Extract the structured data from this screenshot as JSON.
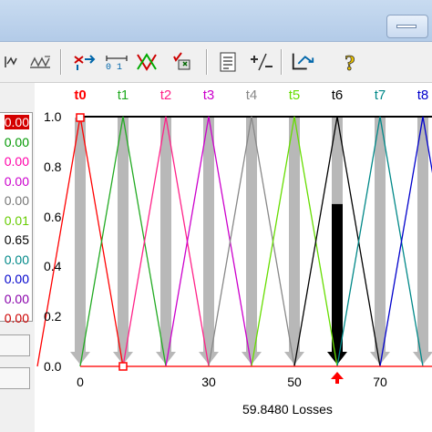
{
  "window": {
    "close_icon": "close-button-icon"
  },
  "toolbar": {
    "icons": [
      "trend-wave-icon",
      "trend-stack-icon",
      "arrows-move-icon",
      "scale-01-icon",
      "crossover-icon",
      "hand-checklist-icon",
      "document-list-icon",
      "plus-minus-icon",
      "route-arrow-icon",
      "help-question-icon"
    ]
  },
  "left_panel": {
    "values": [
      {
        "text": "0.00",
        "color": "#ffffff",
        "bg": "#d40000"
      },
      {
        "text": "0.00",
        "color": "#009900"
      },
      {
        "text": "0.00",
        "color": "#ff00aa"
      },
      {
        "text": "0.00",
        "color": "#cc00cc"
      },
      {
        "text": "0.00",
        "color": "#777777"
      },
      {
        "text": "0.01",
        "color": "#66cc00"
      },
      {
        "text": "0.65",
        "color": "#000000"
      },
      {
        "text": "0.00",
        "color": "#008888"
      },
      {
        "text": "0.00",
        "color": "#0000cc"
      },
      {
        "text": "0.00",
        "color": "#8800aa"
      },
      {
        "text": "0.00",
        "color": "#cc0000"
      }
    ]
  },
  "chart_data": {
    "type": "line",
    "series_labels": [
      {
        "name": "t0",
        "color": "#ff0000",
        "bold": true
      },
      {
        "name": "t1",
        "color": "#22aa22"
      },
      {
        "name": "t2",
        "color": "#ff2288"
      },
      {
        "name": "t3",
        "color": "#cc00cc"
      },
      {
        "name": "t4",
        "color": "#888888"
      },
      {
        "name": "t5",
        "color": "#66dd00"
      },
      {
        "name": "t6",
        "color": "#000000"
      },
      {
        "name": "t7",
        "color": "#008888"
      },
      {
        "name": "t8",
        "color": "#0000cc"
      }
    ],
    "triangle_peaks": [
      0,
      10,
      20,
      30,
      40,
      50,
      60,
      70,
      80
    ],
    "triangle_halfwidth": 10,
    "gray_bars_at": [
      0,
      10,
      20,
      30,
      40,
      50,
      70,
      80
    ],
    "highlight_bar": {
      "x": 60,
      "value": 0.65
    },
    "red_markers_at": [
      0,
      10
    ],
    "current_x": 60,
    "ylim": [
      0,
      1
    ],
    "xlim": [
      0,
      80
    ],
    "y_ticks": [
      "0.0",
      "0.2",
      "0.4",
      "0.6",
      "0.8",
      "1.0"
    ],
    "x_ticks": [
      {
        "label": "0",
        "x": 0
      },
      {
        "label": "30",
        "x": 30
      },
      {
        "label": "50",
        "x": 50
      },
      {
        "label": "70",
        "x": 70
      }
    ]
  },
  "status": {
    "losses": "59.8480 Losses"
  }
}
